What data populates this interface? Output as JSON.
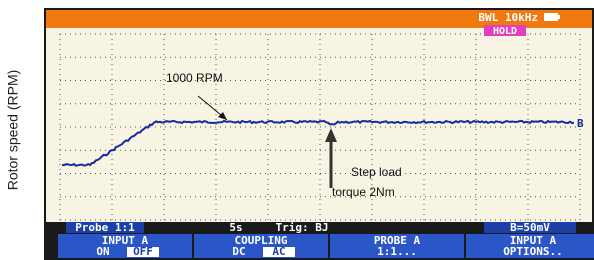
{
  "y_axis_label": "Rotor speed (RPM)",
  "status": {
    "filter": "BWL 10kHz",
    "hold": "HOLD"
  },
  "trace_marker": "B",
  "annotations": {
    "speed": "1000 RPM",
    "load_line1": "Step load",
    "load_line2": "torque 2Nm"
  },
  "info_bar": {
    "probe": "Probe 1:1",
    "timebase": "5s",
    "trigger": "Trig: BJ",
    "scale": "B=50mV"
  },
  "softkeys": [
    {
      "title": "INPUT A",
      "options": [
        "ON",
        "OFF"
      ],
      "selected": 1
    },
    {
      "title": "COUPLING",
      "options": [
        "DC",
        "AC"
      ],
      "selected": 1
    },
    {
      "title": "PROBE A",
      "options": [
        "1:1..."
      ],
      "selected": -1
    },
    {
      "title": "INPUT A",
      "options": [
        "OPTIONS.."
      ],
      "selected": -1
    }
  ]
}
